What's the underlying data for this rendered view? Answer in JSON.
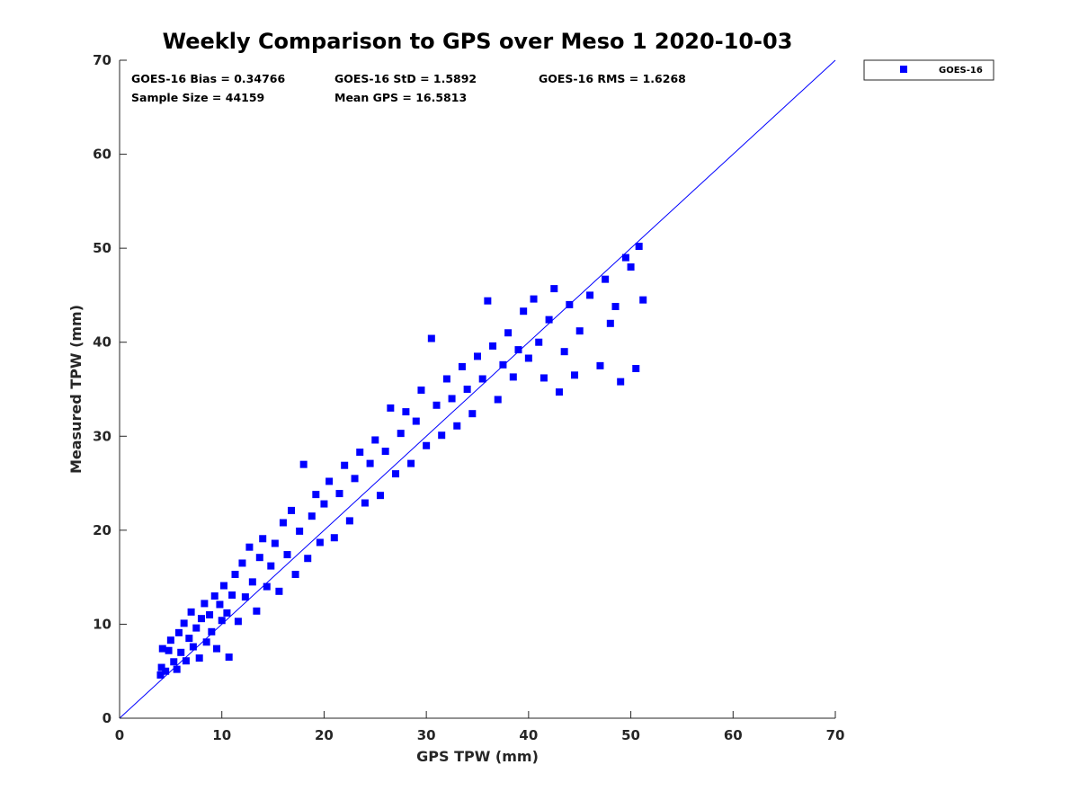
{
  "chart_data": {
    "type": "scatter",
    "title": "Weekly Comparison to GPS over Meso 1 2020-10-03",
    "xlabel": "GPS TPW (mm)",
    "ylabel": "Measured TPW (mm)",
    "xlim": [
      0,
      70
    ],
    "ylim": [
      0,
      70
    ],
    "xticks": [
      "0",
      "10",
      "20",
      "30",
      "40",
      "50",
      "60",
      "70"
    ],
    "yticks": [
      "0",
      "10",
      "20",
      "30",
      "40",
      "50",
      "60",
      "70"
    ],
    "grid": false,
    "legend_position": "top-right outside",
    "stats": [
      "GOES-16 Bias = 0.34766",
      "GOES-16 StD = 1.5892",
      "GOES-16 RMS = 1.6268",
      "Sample Size = 44159",
      "Mean GPS = 16.5813"
    ],
    "reference_line": {
      "description": "1:1",
      "x": [
        0,
        70
      ],
      "y": [
        0,
        70
      ],
      "color": "#0000ff"
    },
    "series": [
      {
        "name": "GOES-16",
        "color": "#0000ff",
        "marker": "square",
        "points": [
          [
            4.0,
            4.6
          ],
          [
            4.1,
            5.4
          ],
          [
            4.2,
            7.4
          ],
          [
            4.5,
            5.0
          ],
          [
            4.8,
            7.2
          ],
          [
            5.0,
            8.3
          ],
          [
            5.3,
            6.0
          ],
          [
            5.6,
            5.2
          ],
          [
            5.8,
            9.1
          ],
          [
            6.0,
            7.0
          ],
          [
            6.3,
            10.1
          ],
          [
            6.5,
            6.1
          ],
          [
            6.8,
            8.5
          ],
          [
            7.0,
            11.3
          ],
          [
            7.2,
            7.6
          ],
          [
            7.5,
            9.6
          ],
          [
            7.8,
            6.4
          ],
          [
            8.0,
            10.6
          ],
          [
            8.3,
            12.2
          ],
          [
            8.5,
            8.1
          ],
          [
            8.8,
            11.0
          ],
          [
            9.0,
            9.2
          ],
          [
            9.3,
            13.0
          ],
          [
            9.5,
            7.4
          ],
          [
            9.8,
            12.1
          ],
          [
            10.0,
            10.4
          ],
          [
            10.2,
            14.1
          ],
          [
            10.5,
            11.2
          ],
          [
            10.7,
            6.5
          ],
          [
            11.0,
            13.1
          ],
          [
            11.3,
            15.3
          ],
          [
            11.6,
            10.3
          ],
          [
            12.0,
            16.5
          ],
          [
            12.3,
            12.9
          ],
          [
            12.7,
            18.2
          ],
          [
            13.0,
            14.5
          ],
          [
            13.4,
            11.4
          ],
          [
            13.7,
            17.1
          ],
          [
            14.0,
            19.1
          ],
          [
            14.4,
            14.0
          ],
          [
            14.8,
            16.2
          ],
          [
            15.2,
            18.6
          ],
          [
            15.6,
            13.5
          ],
          [
            16.0,
            20.8
          ],
          [
            16.4,
            17.4
          ],
          [
            16.8,
            22.1
          ],
          [
            17.2,
            15.3
          ],
          [
            17.6,
            19.9
          ],
          [
            18.0,
            27.0
          ],
          [
            18.4,
            17.0
          ],
          [
            18.8,
            21.5
          ],
          [
            19.2,
            23.8
          ],
          [
            19.6,
            18.7
          ],
          [
            20.0,
            22.8
          ],
          [
            20.5,
            25.2
          ],
          [
            21.0,
            19.2
          ],
          [
            21.5,
            23.9
          ],
          [
            22.0,
            26.9
          ],
          [
            22.5,
            21.0
          ],
          [
            23.0,
            25.5
          ],
          [
            23.5,
            28.3
          ],
          [
            24.0,
            22.9
          ],
          [
            24.5,
            27.1
          ],
          [
            25.0,
            29.6
          ],
          [
            25.5,
            23.7
          ],
          [
            26.0,
            28.4
          ],
          [
            26.5,
            33.0
          ],
          [
            27.0,
            26.0
          ],
          [
            27.5,
            30.3
          ],
          [
            28.0,
            32.6
          ],
          [
            28.5,
            27.1
          ],
          [
            29.0,
            31.6
          ],
          [
            29.5,
            34.9
          ],
          [
            30.0,
            29.0
          ],
          [
            30.5,
            40.4
          ],
          [
            31.0,
            33.3
          ],
          [
            31.5,
            30.1
          ],
          [
            32.0,
            36.1
          ],
          [
            32.5,
            34.0
          ],
          [
            33.0,
            31.1
          ],
          [
            33.5,
            37.4
          ],
          [
            34.0,
            35.0
          ],
          [
            34.5,
            32.4
          ],
          [
            35.0,
            38.5
          ],
          [
            35.5,
            36.1
          ],
          [
            36.0,
            44.4
          ],
          [
            36.5,
            39.6
          ],
          [
            37.0,
            33.9
          ],
          [
            37.5,
            37.6
          ],
          [
            38.0,
            41.0
          ],
          [
            38.5,
            36.3
          ],
          [
            39.0,
            39.2
          ],
          [
            39.5,
            43.3
          ],
          [
            40.0,
            38.3
          ],
          [
            40.5,
            44.6
          ],
          [
            41.0,
            40.0
          ],
          [
            41.5,
            36.2
          ],
          [
            42.0,
            42.4
          ],
          [
            42.5,
            45.7
          ],
          [
            43.0,
            34.7
          ],
          [
            43.5,
            39.0
          ],
          [
            44.0,
            44.0
          ],
          [
            44.5,
            36.5
          ],
          [
            45.0,
            41.2
          ],
          [
            46.0,
            45.0
          ],
          [
            47.0,
            37.5
          ],
          [
            47.5,
            46.7
          ],
          [
            48.0,
            42.0
          ],
          [
            48.5,
            43.8
          ],
          [
            49.0,
            35.8
          ],
          [
            49.5,
            49.0
          ],
          [
            50.0,
            48.0
          ],
          [
            50.5,
            37.2
          ],
          [
            50.8,
            50.2
          ],
          [
            51.2,
            44.5
          ]
        ]
      }
    ]
  }
}
